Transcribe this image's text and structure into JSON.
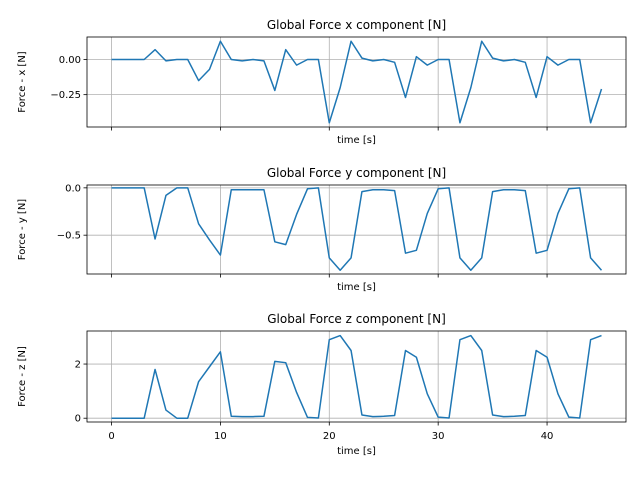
{
  "chart_data": [
    {
      "type": "line",
      "title": "Global Force x component [N]",
      "xlabel": "time [s]",
      "ylabel": "Force - x [N]",
      "xlim": [
        -2.25,
        47.25
      ],
      "ylim": [
        -0.48,
        0.16
      ],
      "xticks": [
        0,
        10,
        20,
        30,
        40
      ],
      "show_xtick_labels": false,
      "yticks": [
        -0.25,
        0.0
      ],
      "ytick_labels": [
        "−0.25",
        "0.00"
      ],
      "grid": true,
      "series": [
        {
          "color": "#1f77b4",
          "x": [
            0,
            1,
            2,
            3,
            4,
            5,
            6,
            7,
            8,
            9,
            10,
            11,
            12,
            13,
            14,
            15,
            16,
            17,
            18,
            19,
            20,
            21,
            22,
            23,
            24,
            25,
            26,
            27,
            28,
            29,
            30,
            31,
            32,
            33,
            34,
            35,
            36,
            37,
            38,
            39,
            40,
            41,
            42,
            43,
            44,
            45
          ],
          "y": [
            0.0,
            0.0,
            0.0,
            0.0,
            0.07,
            -0.01,
            0.0,
            0.0,
            -0.15,
            -0.07,
            0.13,
            0.0,
            -0.01,
            0.0,
            -0.01,
            -0.22,
            0.07,
            -0.04,
            0.0,
            0.0,
            -0.45,
            -0.2,
            0.13,
            0.01,
            -0.01,
            0.0,
            -0.02,
            -0.27,
            0.02,
            -0.04,
            0.0,
            0.0,
            -0.45,
            -0.2,
            0.13,
            0.01,
            -0.01,
            0.0,
            -0.02,
            -0.27,
            0.02,
            -0.04,
            0.0,
            0.0,
            -0.45,
            -0.21
          ]
        }
      ]
    },
    {
      "type": "line",
      "title": "Global Force y component [N]",
      "xlabel": "time [s]",
      "ylabel": "Force - y [N]",
      "xlim": [
        -2.25,
        47.25
      ],
      "ylim": [
        -0.91,
        0.03
      ],
      "xticks": [
        0,
        10,
        20,
        30,
        40
      ],
      "show_xtick_labels": false,
      "yticks": [
        -0.5,
        0.0
      ],
      "ytick_labels": [
        "−0.5",
        "0.0"
      ],
      "grid": true,
      "series": [
        {
          "color": "#1f77b4",
          "x": [
            0,
            1,
            2,
            3,
            4,
            5,
            6,
            7,
            8,
            9,
            10,
            11,
            12,
            13,
            14,
            15,
            16,
            17,
            18,
            19,
            20,
            21,
            22,
            23,
            24,
            25,
            26,
            27,
            28,
            29,
            30,
            31,
            32,
            33,
            34,
            35,
            36,
            37,
            38,
            39,
            40,
            41,
            42,
            43,
            44,
            45
          ],
          "y": [
            0.0,
            0.0,
            0.0,
            0.0,
            -0.54,
            -0.08,
            0.0,
            0.0,
            -0.38,
            -0.55,
            -0.71,
            -0.02,
            -0.02,
            -0.02,
            -0.02,
            -0.57,
            -0.6,
            -0.28,
            -0.01,
            0.0,
            -0.74,
            -0.87,
            -0.74,
            -0.04,
            -0.02,
            -0.02,
            -0.03,
            -0.69,
            -0.66,
            -0.27,
            -0.01,
            0.0,
            -0.74,
            -0.87,
            -0.74,
            -0.04,
            -0.02,
            -0.02,
            -0.03,
            -0.69,
            -0.66,
            -0.27,
            -0.01,
            0.0,
            -0.74,
            -0.87
          ]
        }
      ]
    },
    {
      "type": "line",
      "title": "Global Force z component [N]",
      "xlabel": "time [s]",
      "ylabel": "Force - z [N]",
      "xlim": [
        -2.25,
        47.25
      ],
      "ylim": [
        -0.14,
        3.22
      ],
      "xticks": [
        0,
        10,
        20,
        30,
        40
      ],
      "show_xtick_labels": true,
      "yticks": [
        0,
        2
      ],
      "ytick_labels": [
        "0",
        "2"
      ],
      "grid": true,
      "series": [
        {
          "color": "#1f77b4",
          "x": [
            0,
            1,
            2,
            3,
            4,
            5,
            6,
            7,
            8,
            9,
            10,
            11,
            12,
            13,
            14,
            15,
            16,
            17,
            18,
            19,
            20,
            21,
            22,
            23,
            24,
            25,
            26,
            27,
            28,
            29,
            30,
            31,
            32,
            33,
            34,
            35,
            36,
            37,
            38,
            39,
            40,
            41,
            42,
            43,
            44,
            45
          ],
          "y": [
            0.0,
            0.0,
            0.0,
            0.0,
            1.8,
            0.3,
            0.0,
            0.0,
            1.35,
            1.9,
            2.45,
            0.07,
            0.06,
            0.06,
            0.07,
            2.1,
            2.05,
            0.95,
            0.03,
            0.01,
            2.9,
            3.05,
            2.5,
            0.12,
            0.06,
            0.07,
            0.1,
            2.5,
            2.25,
            0.9,
            0.04,
            0.01,
            2.9,
            3.05,
            2.5,
            0.12,
            0.06,
            0.07,
            0.1,
            2.5,
            2.25,
            0.9,
            0.04,
            0.01,
            2.9,
            3.05
          ]
        }
      ]
    }
  ]
}
